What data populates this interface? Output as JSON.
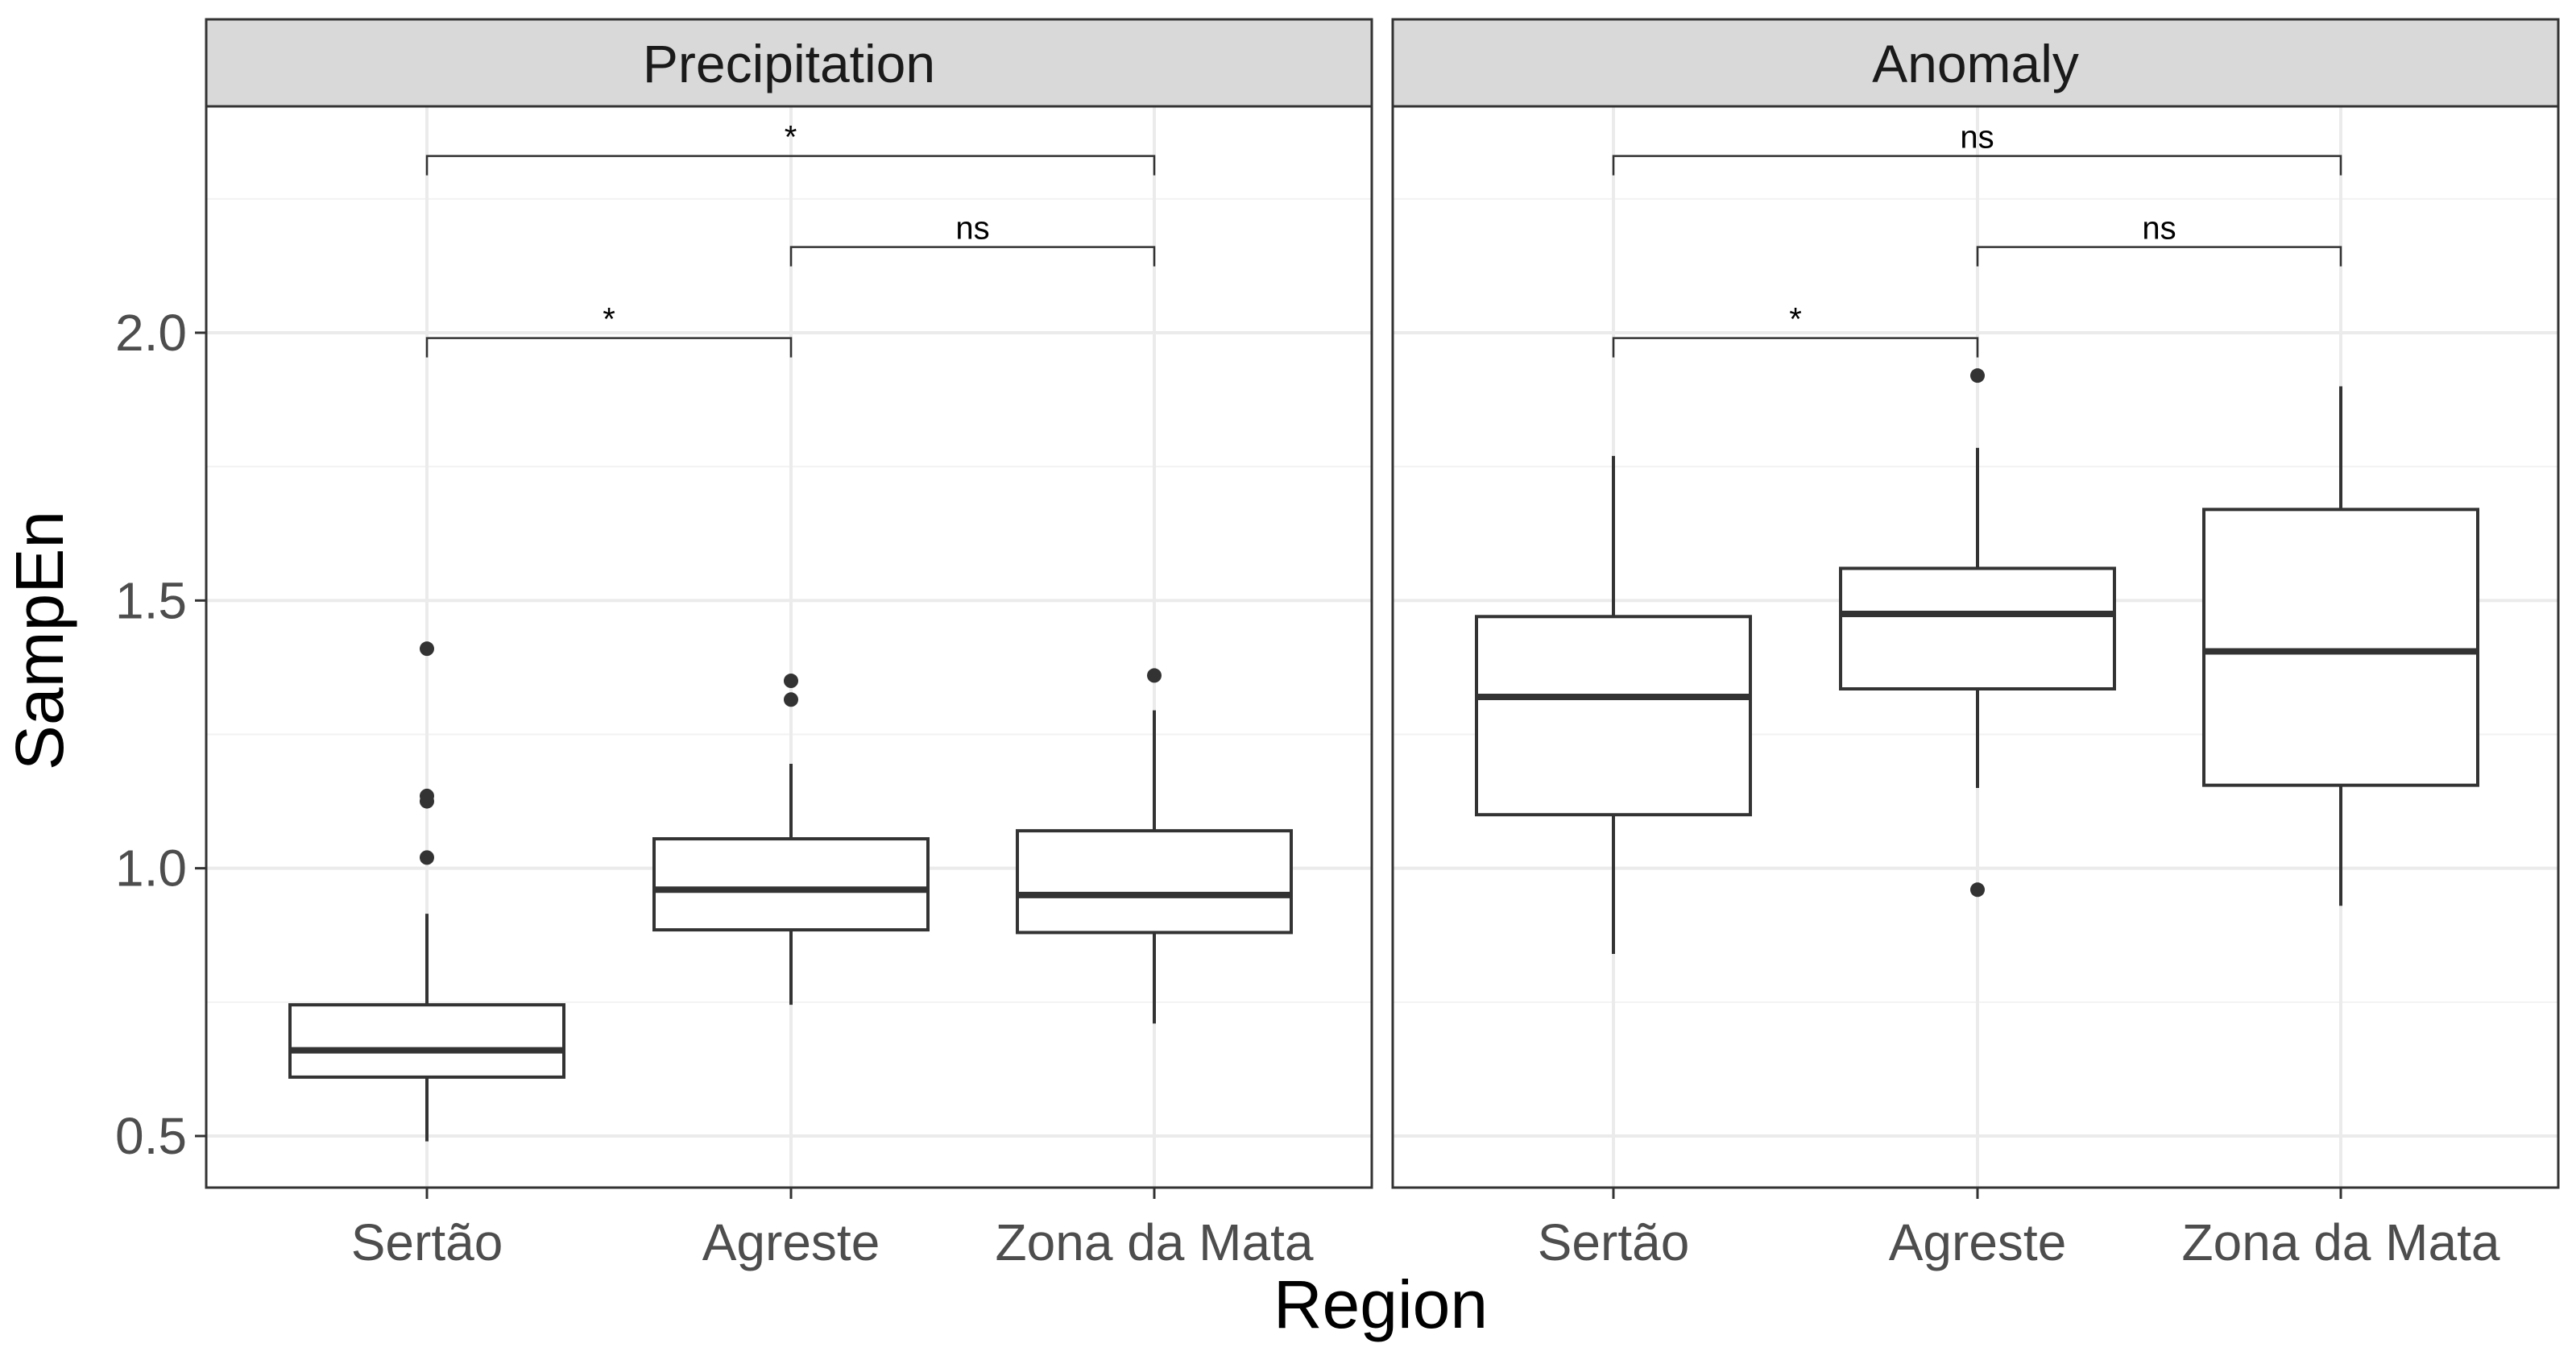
{
  "chart_data": {
    "type": "boxplot",
    "xlabel": "Region",
    "ylabel": "SampEn",
    "ylim": [
      0.4,
      2.43
    ],
    "y_ticks": [
      0.5,
      1.0,
      1.5,
      2.0
    ],
    "y_tick_labels": [
      "0.5",
      "1.0",
      "1.5",
      "2.0"
    ],
    "grid": true,
    "categories": [
      "Sertão",
      "Agreste",
      "Zona da Mata"
    ],
    "panels": [
      {
        "title": "Precipitation",
        "boxes": [
          {
            "category": "Sertão",
            "lower_whisker": 0.49,
            "q1": 0.61,
            "median": 0.66,
            "q3": 0.745,
            "upper_whisker": 0.915,
            "outliers": [
              1.41,
              1.135,
              1.125,
              1.02
            ]
          },
          {
            "category": "Agreste",
            "lower_whisker": 0.745,
            "q1": 0.885,
            "median": 0.96,
            "q3": 1.055,
            "upper_whisker": 1.195,
            "outliers": [
              1.35,
              1.315
            ]
          },
          {
            "category": "Zona da Mata",
            "lower_whisker": 0.71,
            "q1": 0.88,
            "median": 0.95,
            "q3": 1.07,
            "upper_whisker": 1.295,
            "outliers": [
              1.36
            ]
          }
        ],
        "comparisons": [
          {
            "from": "Sertão",
            "to": "Agreste",
            "y": 1.99,
            "label": "*"
          },
          {
            "from": "Agreste",
            "to": "Zona da Mata",
            "y": 2.16,
            "label": "ns"
          },
          {
            "from": "Sertão",
            "to": "Zona da Mata",
            "y": 2.33,
            "label": "*"
          }
        ]
      },
      {
        "title": "Anomaly",
        "boxes": [
          {
            "category": "Sertão",
            "lower_whisker": 0.84,
            "q1": 1.1,
            "median": 1.32,
            "q3": 1.47,
            "upper_whisker": 1.77,
            "outliers": []
          },
          {
            "category": "Agreste",
            "lower_whisker": 1.15,
            "q1": 1.335,
            "median": 1.475,
            "q3": 1.56,
            "upper_whisker": 1.785,
            "outliers": [
              1.92,
              0.96
            ]
          },
          {
            "category": "Zona da Mata",
            "lower_whisker": 0.93,
            "q1": 1.155,
            "median": 1.405,
            "q3": 1.67,
            "upper_whisker": 1.9,
            "outliers": []
          }
        ],
        "comparisons": [
          {
            "from": "Sertão",
            "to": "Agreste",
            "y": 1.99,
            "label": "*"
          },
          {
            "from": "Agreste",
            "to": "Zona da Mata",
            "y": 2.16,
            "label": "ns"
          },
          {
            "from": "Sertão",
            "to": "Zona da Mata",
            "y": 2.33,
            "label": "ns"
          }
        ]
      }
    ]
  }
}
